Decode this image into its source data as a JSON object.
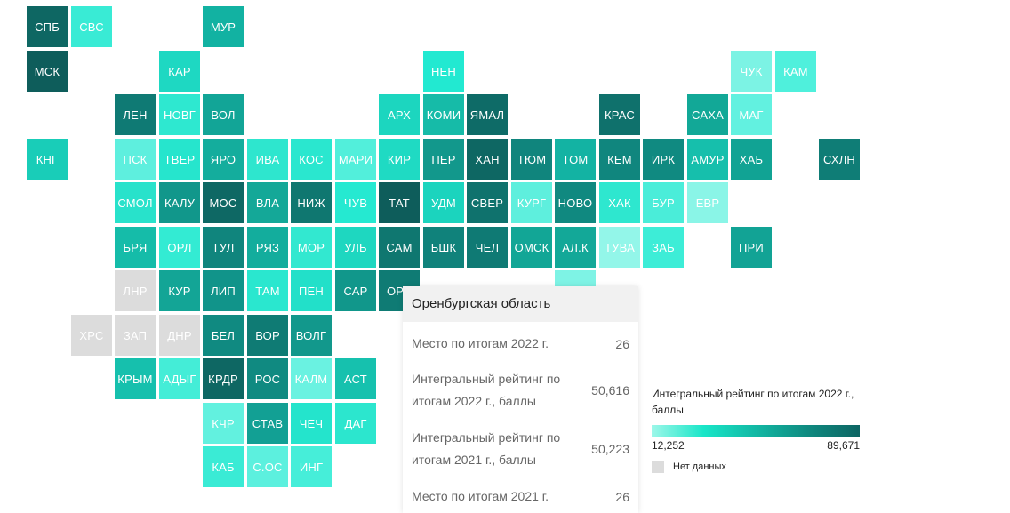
{
  "map": {
    "regions": [
      {
        "label": "СПБ",
        "color": "#0e6763",
        "col": 0,
        "row": 0
      },
      {
        "label": "СВС",
        "color": "#39ebd5",
        "col": 1,
        "row": 0
      },
      {
        "label": "МУР",
        "color": "#12b2a2",
        "col": 4,
        "row": 0
      },
      {
        "label": "МСК",
        "color": "#0e5d5b",
        "col": 0,
        "row": 1
      },
      {
        "label": "КАР",
        "color": "#1ed8c2",
        "col": 3,
        "row": 1
      },
      {
        "label": "НЕН",
        "color": "#22e9d1",
        "col": 9,
        "row": 1
      },
      {
        "label": "ЧУК",
        "color": "#7cf3e4",
        "col": 16,
        "row": 1
      },
      {
        "label": "КАМ",
        "color": "#4ff0dc",
        "col": 17,
        "row": 1
      },
      {
        "label": "ЛЕН",
        "color": "#0f7a74",
        "col": 2,
        "row": 2
      },
      {
        "label": "НОВГ",
        "color": "#2ee8d0",
        "col": 3,
        "row": 2
      },
      {
        "label": "ВОЛ",
        "color": "#12a597",
        "col": 4,
        "row": 2
      },
      {
        "label": "АРХ",
        "color": "#1cd6bf",
        "col": 8,
        "row": 2
      },
      {
        "label": "КОМИ",
        "color": "#16bba8",
        "col": 9,
        "row": 2
      },
      {
        "label": "ЯМАЛ",
        "color": "#0e6b67",
        "col": 10,
        "row": 2
      },
      {
        "label": "КРАС",
        "color": "#0f716c",
        "col": 13,
        "row": 2
      },
      {
        "label": "САХА",
        "color": "#12a897",
        "col": 15,
        "row": 2
      },
      {
        "label": "МАГ",
        "color": "#62f1e0",
        "col": 16,
        "row": 2
      },
      {
        "label": "КНГ",
        "color": "#19cdb8",
        "col": 0,
        "row": 3
      },
      {
        "label": "ПСК",
        "color": "#5eefde",
        "col": 2,
        "row": 3
      },
      {
        "label": "ТВЕР",
        "color": "#26e5cd",
        "col": 3,
        "row": 3
      },
      {
        "label": "ЯРО",
        "color": "#14ad9d",
        "col": 4,
        "row": 3
      },
      {
        "label": "ИВА",
        "color": "#2ee6ce",
        "col": 5,
        "row": 3
      },
      {
        "label": "КОС",
        "color": "#2ae7cf",
        "col": 6,
        "row": 3
      },
      {
        "label": "МАРИ",
        "color": "#52efdb",
        "col": 7,
        "row": 3
      },
      {
        "label": "КИР",
        "color": "#1fdac3",
        "col": 8,
        "row": 3
      },
      {
        "label": "ПЕР",
        "color": "#12988c",
        "col": 9,
        "row": 3
      },
      {
        "label": "ХАН",
        "color": "#0e6763",
        "col": 10,
        "row": 3
      },
      {
        "label": "ТЮМ",
        "color": "#10857d",
        "col": 11,
        "row": 3
      },
      {
        "label": "ТОМ",
        "color": "#13b3a3",
        "col": 12,
        "row": 3
      },
      {
        "label": "КЕМ",
        "color": "#10867e",
        "col": 13,
        "row": 3
      },
      {
        "label": "ИРК",
        "color": "#108a81",
        "col": 14,
        "row": 3
      },
      {
        "label": "АМУР",
        "color": "#16bfac",
        "col": 15,
        "row": 3
      },
      {
        "label": "ХАБ",
        "color": "#11a394",
        "col": 16,
        "row": 3
      },
      {
        "label": "СХЛН",
        "color": "#0f7d76",
        "col": 18,
        "row": 3
      },
      {
        "label": "СМОЛ",
        "color": "#28e2cb",
        "col": 2,
        "row": 4
      },
      {
        "label": "КАЛУ",
        "color": "#11978b",
        "col": 3,
        "row": 4
      },
      {
        "label": "МОС",
        "color": "#0e6864",
        "col": 4,
        "row": 4
      },
      {
        "label": "ВЛА",
        "color": "#14a898",
        "col": 5,
        "row": 4
      },
      {
        "label": "НИЖ",
        "color": "#0f7770",
        "col": 6,
        "row": 4
      },
      {
        "label": "ЧУВ",
        "color": "#25e9d1",
        "col": 7,
        "row": 4
      },
      {
        "label": "ТАТ",
        "color": "#0e5d5b",
        "col": 8,
        "row": 4
      },
      {
        "label": "УДМ",
        "color": "#1bd4be",
        "col": 9,
        "row": 4
      },
      {
        "label": "СВЕР",
        "color": "#0f726d",
        "col": 10,
        "row": 4
      },
      {
        "label": "КУРГ",
        "color": "#5eefdd",
        "col": 11,
        "row": 4
      },
      {
        "label": "НОВО",
        "color": "#108980",
        "col": 12,
        "row": 4
      },
      {
        "label": "ХАК",
        "color": "#2ee7cf",
        "col": 13,
        "row": 4
      },
      {
        "label": "БУР",
        "color": "#4aedd9",
        "col": 14,
        "row": 4
      },
      {
        "label": "ЕВР",
        "color": "#8af5e7",
        "col": 15,
        "row": 4
      },
      {
        "label": "БРЯ",
        "color": "#15bca9",
        "col": 2,
        "row": 5
      },
      {
        "label": "ОРЛ",
        "color": "#33ebd3",
        "col": 3,
        "row": 5
      },
      {
        "label": "ТУЛ",
        "color": "#10857d",
        "col": 4,
        "row": 5
      },
      {
        "label": "РЯЗ",
        "color": "#13ad9d",
        "col": 5,
        "row": 5
      },
      {
        "label": "МОР",
        "color": "#32e8d0",
        "col": 6,
        "row": 5
      },
      {
        "label": "УЛЬ",
        "color": "#1ed7c0",
        "col": 7,
        "row": 5
      },
      {
        "label": "САМ",
        "color": "#0f7770",
        "col": 8,
        "row": 5
      },
      {
        "label": "БШК",
        "color": "#10827b",
        "col": 9,
        "row": 5
      },
      {
        "label": "ЧЕЛ",
        "color": "#0f7a74",
        "col": 10,
        "row": 5
      },
      {
        "label": "ОМСК",
        "color": "#12a696",
        "col": 11,
        "row": 5
      },
      {
        "label": "АЛ.К",
        "color": "#13a898",
        "col": 12,
        "row": 5
      },
      {
        "label": "ТУВА",
        "color": "#93f6e9",
        "col": 13,
        "row": 5
      },
      {
        "label": "ЗАБ",
        "color": "#3dedd7",
        "col": 14,
        "row": 5
      },
      {
        "label": "ПРИ",
        "color": "#12a395",
        "col": 16,
        "row": 5
      },
      {
        "label": "ЛНР",
        "color": "#dcdcdc",
        "col": 2,
        "row": 6
      },
      {
        "label": "КУР",
        "color": "#13a596",
        "col": 3,
        "row": 6
      },
      {
        "label": "ЛИП",
        "color": "#11948a",
        "col": 4,
        "row": 6
      },
      {
        "label": "ТАМ",
        "color": "#2ae7cf",
        "col": 5,
        "row": 6
      },
      {
        "label": "ПЕН",
        "color": "#22e0c9",
        "col": 6,
        "row": 6
      },
      {
        "label": "САР",
        "color": "#11978b",
        "col": 7,
        "row": 6
      },
      {
        "label": "ОРЕ",
        "color": "#0f7b74",
        "col": 8,
        "row": 6
      },
      {
        "label": "",
        "color": "#7ef3e5",
        "col": 12,
        "row": 6
      },
      {
        "label": "ХРС",
        "color": "#dcdcdc",
        "col": 1,
        "row": 7
      },
      {
        "label": "ЗАП",
        "color": "#dcdcdc",
        "col": 2,
        "row": 7
      },
      {
        "label": "ДНР",
        "color": "#dcdcdc",
        "col": 3,
        "row": 7
      },
      {
        "label": "БЕЛ",
        "color": "#108a81",
        "col": 4,
        "row": 7
      },
      {
        "label": "ВОР",
        "color": "#0f7b74",
        "col": 5,
        "row": 7
      },
      {
        "label": "ВОЛГ",
        "color": "#12988c",
        "col": 6,
        "row": 7
      },
      {
        "label": "КРЫМ",
        "color": "#16c0ad",
        "col": 2,
        "row": 8
      },
      {
        "label": "АДЫГ",
        "color": "#44edd7",
        "col": 3,
        "row": 8
      },
      {
        "label": "КРДР",
        "color": "#0e6763",
        "col": 4,
        "row": 8
      },
      {
        "label": "РОС",
        "color": "#108a81",
        "col": 5,
        "row": 8
      },
      {
        "label": "КАЛМ",
        "color": "#6af2e1",
        "col": 6,
        "row": 8
      },
      {
        "label": "АСТ",
        "color": "#16c1ae",
        "col": 7,
        "row": 8
      },
      {
        "label": "КЧР",
        "color": "#62f1df",
        "col": 4,
        "row": 9
      },
      {
        "label": "СТАВ",
        "color": "#12a094",
        "col": 5,
        "row": 9
      },
      {
        "label": "ЧЕЧ",
        "color": "#24e4cc",
        "col": 6,
        "row": 9
      },
      {
        "label": "ДАГ",
        "color": "#2ce6ce",
        "col": 7,
        "row": 9
      },
      {
        "label": "КАБ",
        "color": "#3aebd5",
        "col": 4,
        "row": 10
      },
      {
        "label": "С.ОС",
        "color": "#5cf0de",
        "col": 5,
        "row": 10
      },
      {
        "label": "ИНГ",
        "color": "#46eed9",
        "col": 6,
        "row": 10
      }
    ]
  },
  "tooltip": {
    "title": "Оренбургская область",
    "rows": [
      {
        "label": "Место по итогам 2022 г.",
        "value": "26"
      },
      {
        "label": "Интегральный рейтинг по итогам 2022 г., баллы",
        "value": "50,616"
      },
      {
        "label": "Интегральный рейтинг по итогам 2021 г., баллы",
        "value": "50,223"
      },
      {
        "label": "Место по итогам 2021 г.",
        "value": "26"
      }
    ]
  },
  "legend": {
    "title": "Интегральный рейтинг по итогам 2022 г., баллы",
    "min": "12,252",
    "max": "89,671",
    "gradient": [
      "#9df7e9",
      "#19e6c8",
      "#12b8a4",
      "#0f8a80",
      "#0d6563"
    ],
    "nodata_label": "Нет данных",
    "nodata_color": "#dcdcdc"
  }
}
